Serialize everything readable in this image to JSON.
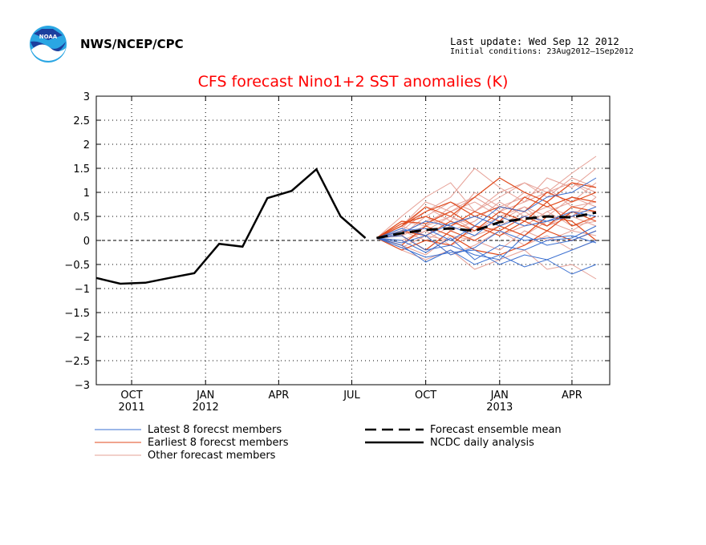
{
  "header": {
    "agency": "NWS/NCEP/CPC",
    "last_update": "Last update: Wed Sep 12 2012",
    "initial_conditions": "Initial conditions: 23Aug2012–1Sep2012"
  },
  "chart_data": {
    "type": "line",
    "title": "CFS forecast Nino1+2 SST anomalies (K)",
    "ylim": [
      -3,
      3
    ],
    "y_ticks": [
      3,
      2.5,
      2,
      1.5,
      1,
      0.5,
      0,
      -0.5,
      -1,
      -1.5,
      -2,
      -2.5,
      -3
    ],
    "x_range": [
      "2011-09-01",
      "2013-06-01"
    ],
    "x_ticks": [
      {
        "date": "2011-10-15",
        "label": "OCT",
        "year": "2011"
      },
      {
        "date": "2012-01-15",
        "label": "JAN",
        "year": "2012"
      },
      {
        "date": "2012-04-15",
        "label": "APR",
        "year": ""
      },
      {
        "date": "2012-07-15",
        "label": "JUL",
        "year": ""
      },
      {
        "date": "2012-10-15",
        "label": "OCT",
        "year": ""
      },
      {
        "date": "2013-01-15",
        "label": "JAN",
        "year": "2013"
      },
      {
        "date": "2013-04-15",
        "label": "APR",
        "year": ""
      }
    ],
    "grid": true,
    "colors": {
      "latest": "#3a6fd0",
      "earliest": "#e04a1c",
      "other": "#e6a096",
      "mean": "#000000",
      "analysis": "#000000",
      "title": "#ff0000"
    },
    "legend": {
      "latest": "Latest 8 forecst members",
      "earliest": "Earliest 8 forecst members",
      "other": "Other forecast members",
      "mean": "Forecast ensemble mean",
      "analysis": "NCDC daily analysis"
    },
    "forecast_x": [
      "2012-08-15",
      "2012-09-15",
      "2012-10-15",
      "2012-11-15",
      "2012-12-15",
      "2013-01-15",
      "2013-02-15",
      "2013-03-15",
      "2013-04-15",
      "2013-05-15"
    ],
    "series": [
      {
        "name": "NCDC daily analysis",
        "role": "analysis",
        "x": [
          "2011-09-01",
          "2011-10-01",
          "2011-11-01",
          "2011-12-01",
          "2012-01-01",
          "2012-02-01",
          "2012-03-01",
          "2012-04-01",
          "2012-05-01",
          "2012-06-01",
          "2012-07-01",
          "2012-08-01"
        ],
        "y": [
          -0.78,
          -0.9,
          -0.88,
          -0.78,
          -0.68,
          -0.07,
          -0.13,
          0.88,
          1.03,
          1.48,
          0.5,
          0.05
        ]
      },
      {
        "name": "Forecast ensemble mean",
        "role": "mean",
        "y": [
          0.05,
          0.15,
          0.22,
          0.25,
          0.2,
          0.38,
          0.45,
          0.5,
          0.48,
          0.58
        ]
      }
    ],
    "members": {
      "latest": [
        [
          0.05,
          -0.1,
          -0.45,
          -0.2,
          -0.5,
          -0.3,
          -0.55,
          -0.4,
          -0.7,
          -0.5
        ],
        [
          0.05,
          0.1,
          -0.2,
          -0.1,
          -0.3,
          -0.4,
          0.1,
          -0.1,
          0.0,
          0.2
        ],
        [
          0.05,
          0.2,
          0.25,
          0.0,
          0.3,
          0.7,
          0.6,
          0.9,
          1.0,
          1.3
        ],
        [
          0.05,
          -0.05,
          0.1,
          -0.3,
          -0.15,
          0.2,
          0.0,
          0.05,
          0.1,
          -0.05
        ],
        [
          0.05,
          0.15,
          0.4,
          0.3,
          0.1,
          0.5,
          0.3,
          0.4,
          0.5,
          0.7
        ],
        [
          0.05,
          0.0,
          -0.25,
          0.05,
          -0.4,
          -0.1,
          -0.2,
          0.0,
          0.05,
          0.3
        ],
        [
          0.05,
          0.25,
          0.1,
          0.35,
          0.5,
          0.3,
          0.5,
          0.4,
          0.6,
          0.5
        ],
        [
          0.05,
          -0.15,
          -0.35,
          -0.25,
          -0.2,
          -0.5,
          -0.3,
          -0.4,
          -0.2,
          0.0
        ]
      ],
      "earliest": [
        [
          0.05,
          0.4,
          0.35,
          0.6,
          0.3,
          0.2,
          0.5,
          0.3,
          0.7,
          0.6
        ],
        [
          0.05,
          0.3,
          0.7,
          0.5,
          0.9,
          1.3,
          1.0,
          0.8,
          1.2,
          1.1
        ],
        [
          0.05,
          0.2,
          0.1,
          0.4,
          0.2,
          0.6,
          0.4,
          0.8,
          0.3,
          0.5
        ],
        [
          0.05,
          -0.1,
          0.3,
          0.1,
          -0.2,
          -0.3,
          -0.1,
          0.2,
          0.0,
          0.2
        ],
        [
          0.05,
          0.35,
          0.5,
          0.3,
          0.6,
          0.4,
          0.9,
          0.7,
          0.9,
          0.8
        ],
        [
          0.05,
          0.1,
          -0.2,
          0.2,
          0.0,
          0.3,
          0.1,
          0.5,
          0.4,
          0.0
        ],
        [
          0.05,
          0.3,
          0.6,
          0.8,
          0.5,
          0.7,
          0.6,
          1.0,
          0.8,
          1.0
        ],
        [
          0.05,
          -0.2,
          0.0,
          -0.1,
          0.3,
          0.1,
          0.4,
          0.2,
          0.6,
          0.4
        ]
      ],
      "other": [
        [
          0.05,
          0.5,
          0.9,
          1.2,
          0.6,
          0.9,
          1.2,
          1.0,
          1.4,
          1.75
        ],
        [
          0.05,
          0.2,
          0.6,
          0.9,
          1.5,
          1.1,
          0.8,
          1.3,
          1.1,
          1.5
        ],
        [
          0.05,
          -0.2,
          -0.4,
          -0.2,
          -0.6,
          -0.4,
          -0.2,
          -0.6,
          -0.5,
          -0.8
        ],
        [
          0.05,
          0.4,
          0.3,
          0.7,
          0.9,
          0.6,
          1.0,
          0.8,
          1.2,
          1.0
        ],
        [
          0.05,
          0.1,
          0.5,
          0.2,
          0.4,
          0.8,
          0.5,
          0.7,
          0.5,
          0.9
        ],
        [
          0.05,
          -0.05,
          0.2,
          0.5,
          0.3,
          0.1,
          0.3,
          0.6,
          0.3,
          0.4
        ],
        [
          0.05,
          0.3,
          0.1,
          0.0,
          0.2,
          0.5,
          0.7,
          0.5,
          0.9,
          0.7
        ],
        [
          0.05,
          0.15,
          0.4,
          0.6,
          0.8,
          0.5,
          0.3,
          0.6,
          0.8,
          1.2
        ],
        [
          0.05,
          -0.1,
          -0.3,
          0.1,
          0.0,
          -0.2,
          0.2,
          0.0,
          0.2,
          0.1
        ],
        [
          0.05,
          0.25,
          0.7,
          0.4,
          1.0,
          0.7,
          0.9,
          1.1,
          0.7,
          0.8
        ],
        [
          0.05,
          0.0,
          0.2,
          -0.1,
          0.1,
          0.3,
          0.1,
          0.4,
          0.2,
          0.5
        ],
        [
          0.05,
          0.35,
          0.5,
          0.8,
          0.6,
          1.0,
          1.2,
          0.9,
          1.3,
          1.1
        ],
        [
          0.05,
          0.2,
          0.0,
          0.3,
          0.5,
          0.3,
          0.6,
          0.3,
          0.5,
          0.3
        ],
        [
          0.05,
          -0.15,
          0.1,
          -0.3,
          -0.1,
          0.2,
          -0.1,
          0.1,
          -0.2,
          0.0
        ],
        [
          0.05,
          0.3,
          0.8,
          0.6,
          0.9,
          0.6,
          0.8,
          1.0,
          1.2,
          0.9
        ],
        [
          0.05,
          0.1,
          0.3,
          0.5,
          0.2,
          0.4,
          0.7,
          0.3,
          0.6,
          0.6
        ]
      ]
    }
  }
}
